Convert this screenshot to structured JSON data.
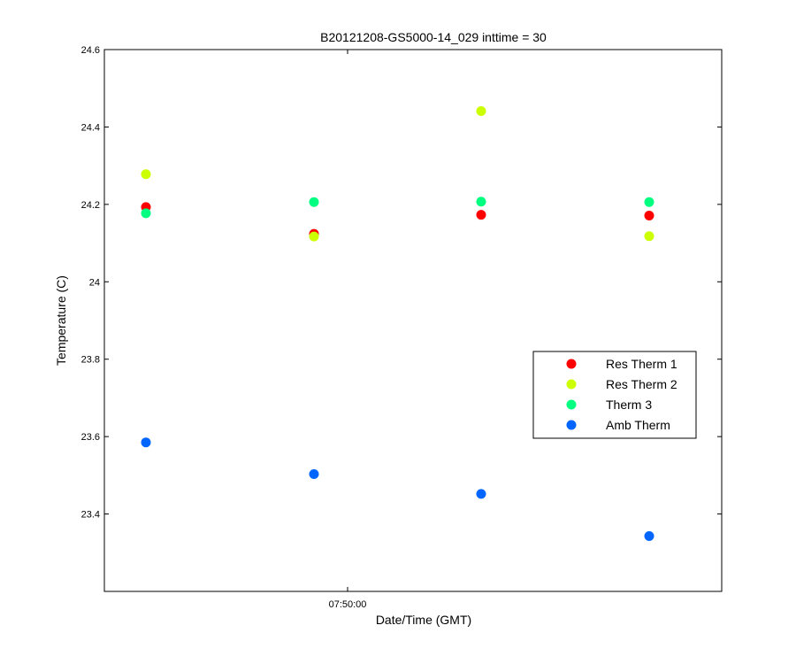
{
  "chart_data": {
    "type": "scatter",
    "title": "B20121208-GS5000-14_029 inttime = 30",
    "xlabel": "Date/Time (GMT)",
    "ylabel": "Temperature (C)",
    "ylim": [
      23.2,
      24.6
    ],
    "y_ticks": [
      "23.4",
      "23.6",
      "23.8",
      "24",
      "24.2",
      "24.4",
      "24.6"
    ],
    "y_tick_values": [
      23.4,
      23.6,
      23.8,
      24.0,
      24.2,
      24.4,
      24.6
    ],
    "x_tick_labels": [
      "07:50:00"
    ],
    "legend_position": "right",
    "grid": false,
    "series": [
      {
        "name": "Res Therm 1",
        "color": "#ff0000",
        "values": [
          24.193,
          24.124,
          24.173,
          24.171
        ]
      },
      {
        "name": "Res Therm 2",
        "color": "#ccff00",
        "values": [
          24.278,
          24.117,
          24.441,
          24.118
        ]
      },
      {
        "name": "Therm 3",
        "color": "#00ff80",
        "values": [
          24.177,
          24.206,
          24.207,
          24.206
        ]
      },
      {
        "name": "Amb Therm",
        "color": "#0066ff",
        "values": [
          23.585,
          23.503,
          23.452,
          23.343
        ]
      }
    ]
  }
}
